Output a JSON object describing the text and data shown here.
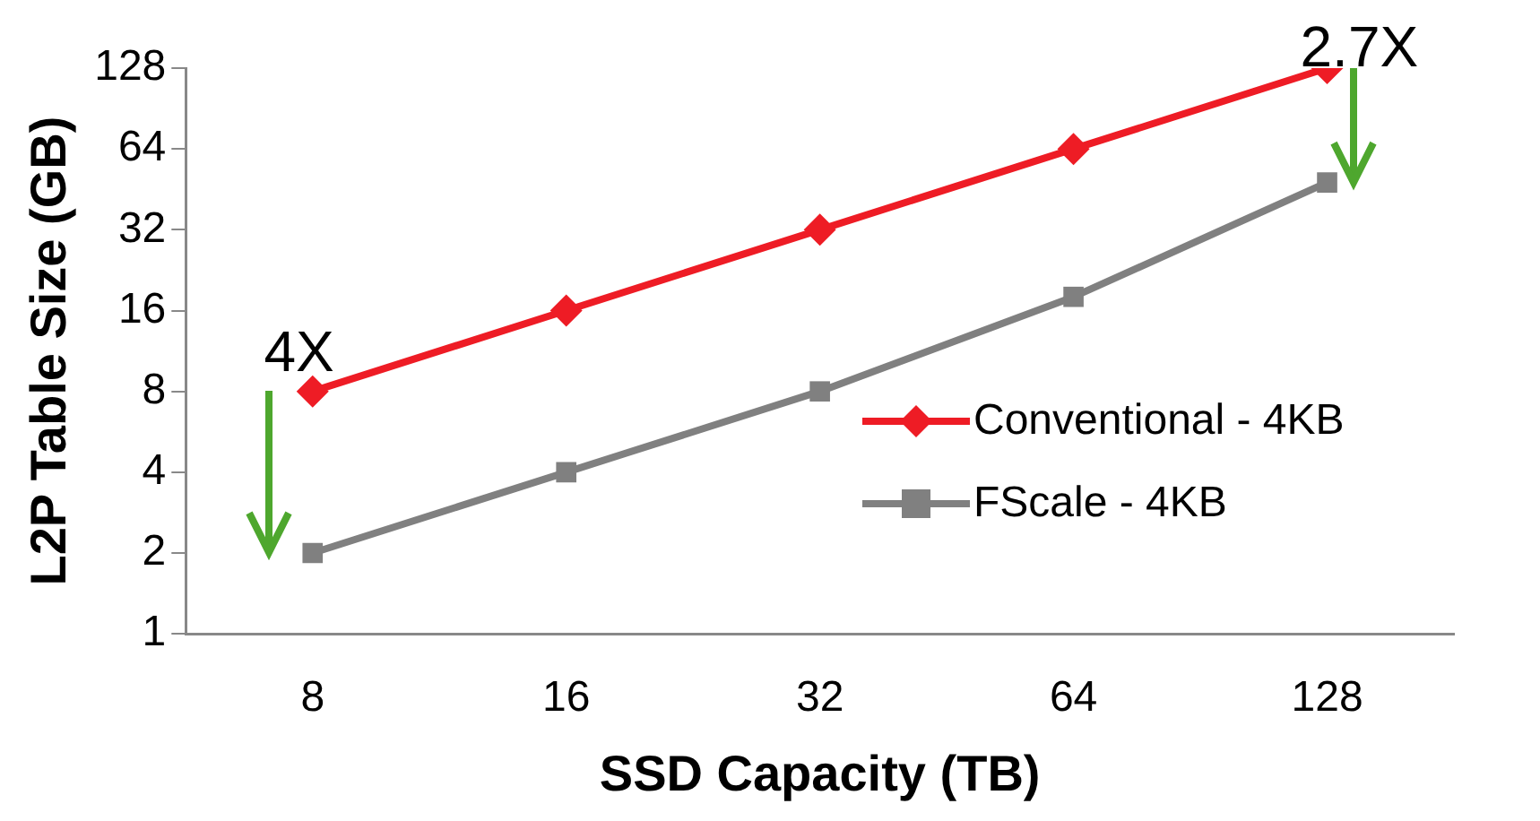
{
  "chart_data": {
    "type": "line",
    "xlabel": "SSD Capacity (TB)",
    "ylabel": "L2P Table Size (GB)",
    "categories": [
      "8",
      "16",
      "32",
      "64",
      "128"
    ],
    "series": [
      {
        "name": "Conventional - 4KB",
        "color": "#ee1c25",
        "values": [
          8,
          16,
          32,
          64,
          128
        ],
        "marker": "diamond"
      },
      {
        "name": "FScale - 4KB",
        "color": "#808080",
        "values": [
          2,
          4,
          8,
          18,
          48
        ],
        "marker": "square"
      }
    ],
    "log": "y",
    "ylim": [
      1,
      128
    ],
    "yticks": [
      1,
      2,
      4,
      8,
      16,
      32,
      64,
      128
    ],
    "grid": false,
    "legend": "right",
    "line_style": "solid",
    "annotations": [
      {
        "text": "4X",
        "x": "8",
        "y": 8
      },
      {
        "text": "2.7X",
        "x": "128",
        "y": 128
      }
    ]
  }
}
